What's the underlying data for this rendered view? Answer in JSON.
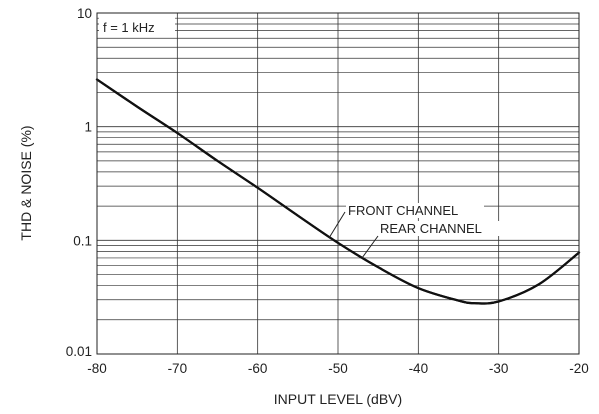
{
  "chart_data": {
    "type": "line",
    "title": "",
    "xlabel": "INPUT LEVEL (dBV)",
    "ylabel": "THD & NOISE (%)",
    "xlim": [
      -80,
      -20
    ],
    "ylim": [
      0.01,
      10
    ],
    "yscale": "log",
    "grid": true,
    "x_ticks": [
      -80,
      -70,
      -60,
      -50,
      -40,
      -30,
      -20
    ],
    "x_tick_labels": [
      "-80",
      "-70",
      "-60",
      "-50",
      "-40",
      "-30",
      "-20"
    ],
    "y_ticks": [
      0.01,
      0.1,
      1,
      10
    ],
    "y_tick_labels": [
      "0.01",
      "0.1",
      "1",
      "10"
    ],
    "annotation": "f = 1 kHz",
    "series": [
      {
        "name": "FRONT CHANNEL",
        "x": [
          -80,
          -75,
          -70,
          -65,
          -60,
          -55,
          -50,
          -45,
          -40,
          -35,
          -33,
          -30,
          -25,
          -20
        ],
        "y": [
          2.6,
          1.5,
          0.88,
          0.5,
          0.29,
          0.165,
          0.095,
          0.058,
          0.038,
          0.0295,
          0.028,
          0.029,
          0.041,
          0.078
        ]
      },
      {
        "name": "REAR CHANNEL",
        "x": [
          -80,
          -75,
          -70,
          -65,
          -60,
          -55,
          -50,
          -45,
          -40,
          -35,
          -33,
          -30,
          -25,
          -20
        ],
        "y": [
          2.6,
          1.5,
          0.88,
          0.5,
          0.29,
          0.165,
          0.095,
          0.058,
          0.038,
          0.0295,
          0.028,
          0.029,
          0.041,
          0.078
        ]
      }
    ],
    "line_color": "#111111",
    "grid_color": "#333333"
  }
}
